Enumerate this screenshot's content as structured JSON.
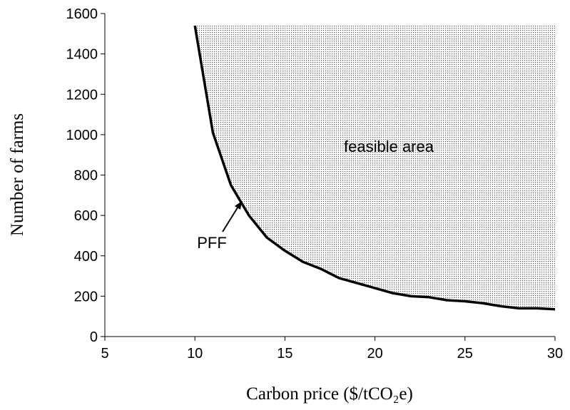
{
  "chart_data": {
    "type": "line",
    "x_label": "Carbon price ($/tCO₂e)",
    "y_label": "Number of farms",
    "x": [
      10,
      11,
      12,
      13,
      14,
      15,
      16,
      17,
      18,
      19,
      20,
      21,
      22,
      23,
      24,
      25,
      26,
      27,
      28,
      29,
      30
    ],
    "series": [
      {
        "name": "PFF",
        "color": "#000000",
        "values": [
          1540,
          1010,
          750,
          600,
          490,
          425,
          370,
          335,
          290,
          265,
          240,
          215,
          200,
          195,
          180,
          175,
          165,
          150,
          140,
          140,
          135
        ]
      }
    ],
    "annotations": [
      "feasible area"
    ],
    "xlim": [
      5,
      30
    ],
    "xticks": [
      5,
      10,
      15,
      20,
      25,
      30
    ],
    "ylim": [
      0,
      1600
    ],
    "yticks": [
      0,
      200,
      400,
      600,
      800,
      1000,
      1200,
      1400,
      1600
    ],
    "grid": false
  }
}
